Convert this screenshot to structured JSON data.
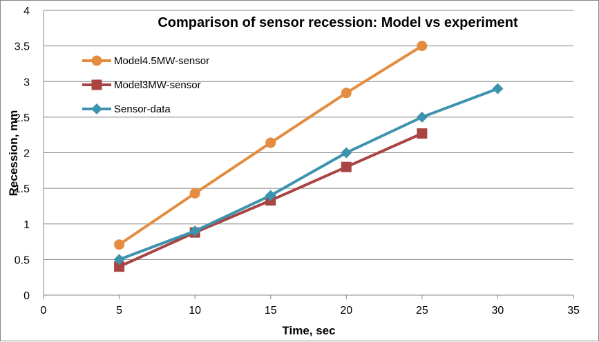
{
  "chart_data": {
    "type": "line",
    "title": "Comparison of sensor recession: Model vs experiment",
    "xlabel": "Time, sec",
    "ylabel": "Recession, mm",
    "xlim": [
      0,
      35
    ],
    "ylim": [
      0,
      4
    ],
    "x_ticks": [
      0,
      5,
      10,
      15,
      20,
      25,
      30,
      35
    ],
    "y_ticks": [
      0,
      0.5,
      1,
      1.5,
      2,
      2.5,
      3,
      3.5,
      4
    ],
    "x_tick_labels": [
      "0",
      "5",
      "10",
      "15",
      "20",
      "25",
      "30",
      "35"
    ],
    "y_tick_labels": [
      "0",
      "0.5",
      "1",
      "1.5",
      "2",
      "2.5",
      "3",
      "3.5",
      "4"
    ],
    "grid": "horizontal",
    "legend_position": "top-left",
    "series": [
      {
        "name": "Model4.5MW-sensor",
        "color": "#E48C3F",
        "marker": "circle",
        "x": [
          5,
          10,
          15,
          20,
          25
        ],
        "y": [
          0.71,
          1.43,
          2.14,
          2.84,
          3.5
        ]
      },
      {
        "name": "Model3MW-sensor",
        "color": "#A84442",
        "marker": "square",
        "x": [
          5,
          10,
          15,
          20,
          25
        ],
        "y": [
          0.4,
          0.88,
          1.33,
          1.8,
          2.27
        ]
      },
      {
        "name": "Sensor-data",
        "color": "#3D93AE",
        "marker": "diamond",
        "x": [
          5,
          10,
          15,
          20,
          25,
          30
        ],
        "y": [
          0.5,
          0.9,
          1.4,
          2.0,
          2.5,
          2.9
        ]
      }
    ]
  }
}
